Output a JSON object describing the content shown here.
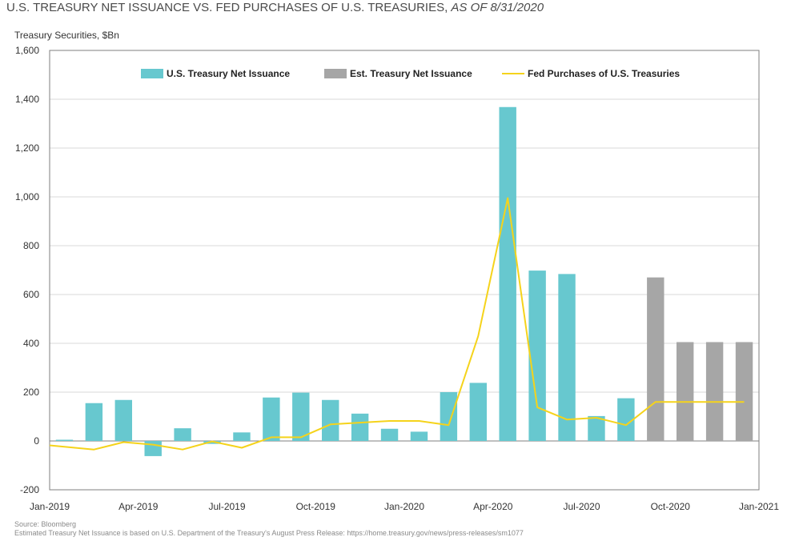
{
  "header": {
    "title_main": "U.S. TREASURY NET ISSUANCE VS. FED PURCHASES OF U.S. TREASURIES,",
    "title_sub": "AS OF 8/31/2020",
    "ylabel": "Treasury Securities, $Bn"
  },
  "footer": {
    "source": "Source: Bloomberg",
    "note": "Estimated Treasury Net Issuance is based on U.S. Department of the Treasury's August Press Release: https://home.treasury.gov/news/press-releases/sm1077"
  },
  "colors": {
    "issuance": "#67c8cf",
    "estimated": "#a6a6a6",
    "fed": "#f5d31b",
    "grid": "#d9d9d9",
    "axis": "#7f7f7f"
  },
  "chart_data": {
    "type": "bar",
    "title": "U.S. TREASURY NET ISSUANCE VS. FED PURCHASES OF U.S. TREASURIES, AS OF 8/31/2020",
    "ylabel": "Treasury Securities, $Bn",
    "ylim": [
      -200,
      1600
    ],
    "yticks": [
      -200,
      0,
      200,
      400,
      600,
      800,
      1000,
      1200,
      1400,
      1600
    ],
    "ytick_labels": [
      "-200",
      "0",
      "200",
      "400",
      "600",
      "800",
      "1,000",
      "1,200",
      "1,400",
      "1,600"
    ],
    "xtick_labels": [
      "Jan-2019",
      "Apr-2019",
      "Jul-2019",
      "Oct-2019",
      "Jan-2020",
      "Apr-2020",
      "Jul-2020",
      "Oct-2020",
      "Jan-2021"
    ],
    "xtick_month_index": [
      0,
      3,
      6,
      9,
      12,
      15,
      18,
      21,
      24
    ],
    "months": [
      "Jan-2019",
      "Feb-2019",
      "Mar-2019",
      "Apr-2019",
      "May-2019",
      "Jun-2019",
      "Jul-2019",
      "Aug-2019",
      "Sep-2019",
      "Oct-2019",
      "Nov-2019",
      "Dec-2019",
      "Jan-2020",
      "Feb-2020",
      "Mar-2020",
      "Apr-2020",
      "May-2020",
      "Jun-2020",
      "Jul-2020",
      "Aug-2020",
      "Sep-2020",
      "Oct-2020",
      "Nov-2020",
      "Dec-2020"
    ],
    "legend_position": "top",
    "series": [
      {
        "name": "U.S. Treasury Net Issuance",
        "kind": "bar",
        "values": [
          5,
          155,
          168,
          -62,
          52,
          -12,
          35,
          178,
          198,
          168,
          112,
          50,
          38,
          200,
          238,
          1368,
          698,
          684,
          102,
          175,
          null,
          null,
          null,
          null
        ]
      },
      {
        "name": "Est. Treasury Net Issuance",
        "kind": "bar",
        "values": [
          null,
          null,
          null,
          null,
          null,
          null,
          null,
          null,
          null,
          null,
          null,
          null,
          null,
          null,
          null,
          null,
          null,
          null,
          null,
          null,
          670,
          405,
          405,
          405
        ]
      },
      {
        "name": "Fed Purchases of U.S. Treasuries",
        "kind": "line",
        "values": [
          -18,
          -35,
          -5,
          -15,
          -35,
          -2,
          -28,
          15,
          15,
          68,
          75,
          82,
          82,
          65,
          430,
          995,
          138,
          88,
          95,
          65,
          160,
          160,
          160,
          160
        ]
      }
    ]
  }
}
